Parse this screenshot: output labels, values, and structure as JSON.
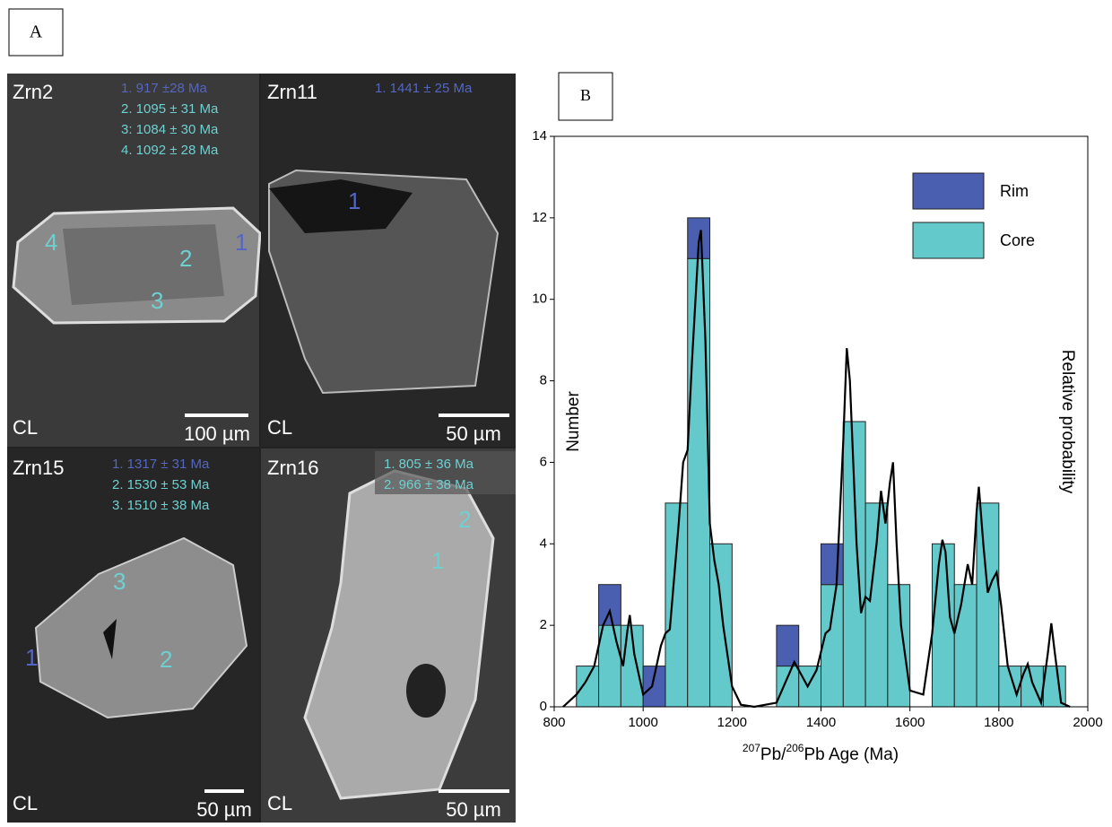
{
  "panel_a": {
    "label": "A",
    "images": [
      {
        "name": "Zrn2",
        "ages": [
          "1. 917 ±28 Ma",
          "2. 1095 ± 31 Ma",
          "3: 1084 ± 30 Ma",
          "4. 1092 ± 28 Ma"
        ],
        "spots": [
          "1",
          "2",
          "3",
          "4"
        ],
        "method": "CL",
        "scale": "100 µm"
      },
      {
        "name": "Zrn11",
        "ages": [
          "1. 1441 ± 25 Ma"
        ],
        "spots": [
          "1"
        ],
        "method": "CL",
        "scale": "50 µm"
      },
      {
        "name": "Zrn15",
        "ages": [
          "1. 1317 ± 31 Ma",
          "2. 1530 ± 53 Ma",
          "3. 1510 ± 38 Ma"
        ],
        "spots": [
          "1",
          "2",
          "3"
        ],
        "method": "CL",
        "scale": "50 µm"
      },
      {
        "name": "Zrn16",
        "ages": [
          "1. 805 ± 36 Ma",
          "2. 966 ± 38 Ma"
        ],
        "spots": [
          "1",
          "2"
        ],
        "method": "CL",
        "scale": "50 µm"
      }
    ]
  },
  "chart_data": {
    "type": "histogram",
    "panel_label": "B",
    "xlabel_parts": [
      "207",
      "Pb/",
      "206",
      "Pb Age (Ma)"
    ],
    "ylabel": "Number",
    "y2label": "Relative probability",
    "bins": [
      800,
      850,
      900,
      950,
      1000,
      1050,
      1100,
      1150,
      1200,
      1250,
      1300,
      1350,
      1400,
      1450,
      1500,
      1550,
      1600,
      1650,
      1700,
      1750,
      1800,
      1850,
      1900,
      1950,
      2000
    ],
    "series": [
      {
        "name": "Core",
        "color": "#63c9cb",
        "values": [
          0,
          1,
          2,
          2,
          0,
          5,
          11,
          4,
          0,
          0,
          1,
          1,
          3,
          7,
          5,
          3,
          0,
          4,
          3,
          5,
          1,
          1,
          1,
          0
        ]
      },
      {
        "name": "Rim",
        "color": "#4a5fb0",
        "values": [
          0,
          0,
          1,
          0,
          1,
          0,
          1,
          0,
          0,
          0,
          1,
          0,
          1,
          0,
          0,
          0,
          0,
          0,
          0,
          0,
          0,
          0,
          0,
          0
        ]
      }
    ],
    "curve": {
      "color": "#000000",
      "x": [
        820,
        850,
        870,
        890,
        910,
        925,
        940,
        955,
        965,
        970,
        980,
        1000,
        1020,
        1040,
        1050,
        1060,
        1080,
        1090,
        1100,
        1110,
        1125,
        1130,
        1140,
        1150,
        1160,
        1170,
        1180,
        1200,
        1220,
        1250,
        1300,
        1320,
        1340,
        1355,
        1370,
        1390,
        1410,
        1420,
        1435,
        1450,
        1458,
        1465,
        1480,
        1490,
        1500,
        1510,
        1525,
        1535,
        1545,
        1555,
        1562,
        1570,
        1580,
        1600,
        1630,
        1650,
        1665,
        1673,
        1680,
        1690,
        1700,
        1715,
        1730,
        1740,
        1750,
        1755,
        1765,
        1775,
        1785,
        1795,
        1805,
        1820,
        1840,
        1855,
        1865,
        1875,
        1895,
        1910,
        1918,
        1925,
        1940,
        1960
      ],
      "values": [
        0,
        0.3,
        0.6,
        1.0,
        2.0,
        2.35,
        1.6,
        1.0,
        1.9,
        2.25,
        1.3,
        0.3,
        0.5,
        1.5,
        1.8,
        1.9,
        4.5,
        6.0,
        6.3,
        8.5,
        11.4,
        11.7,
        9.0,
        4.5,
        3.6,
        3.0,
        2.0,
        0.5,
        0.05,
        0,
        0.1,
        0.6,
        1.1,
        0.8,
        0.5,
        0.9,
        1.8,
        1.9,
        3.0,
        6.5,
        8.8,
        8.0,
        4.0,
        2.3,
        2.7,
        2.6,
        4.0,
        5.3,
        4.5,
        5.5,
        6.0,
        4.0,
        2.0,
        0.4,
        0.3,
        1.8,
        3.5,
        4.1,
        3.8,
        2.2,
        1.8,
        2.5,
        3.5,
        3.0,
        4.8,
        5.4,
        4.0,
        2.8,
        3.1,
        3.3,
        2.5,
        1.0,
        0.3,
        0.8,
        1.05,
        0.6,
        0.1,
        1.3,
        2.05,
        1.4,
        0.1,
        0
      ]
    },
    "xlim": [
      800,
      2000
    ],
    "xticks": [
      800,
      1000,
      1200,
      1400,
      1600,
      1800,
      2000
    ],
    "ylim": [
      0,
      14
    ],
    "yticks": [
      0,
      2,
      4,
      6,
      8,
      10,
      12,
      14
    ],
    "legend": "upper right",
    "grid": false
  }
}
